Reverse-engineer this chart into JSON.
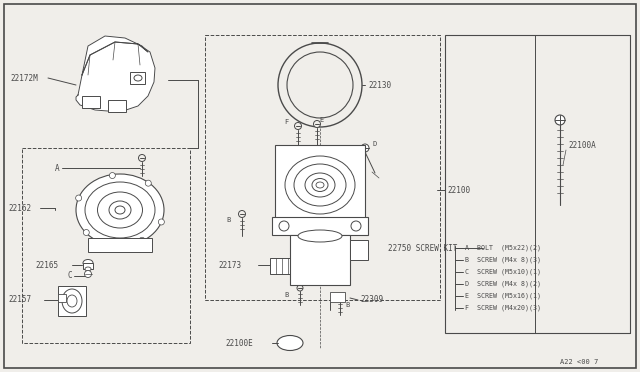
{
  "bg_color": "#f0eeea",
  "line_color": "#4a4a4a",
  "page_code": "A22 <00 7",
  "screw_kit_items": [
    "A  BOLT  (M5x22)(2)",
    "B  SCREW (M4x 8)(3)",
    "C  SCREW (M5x10)(1)",
    "D  SCREW (M4x 8)(2)",
    "E  SCREW (M5x16)(1)",
    "F  SCREW (M4x20)(3)"
  ]
}
